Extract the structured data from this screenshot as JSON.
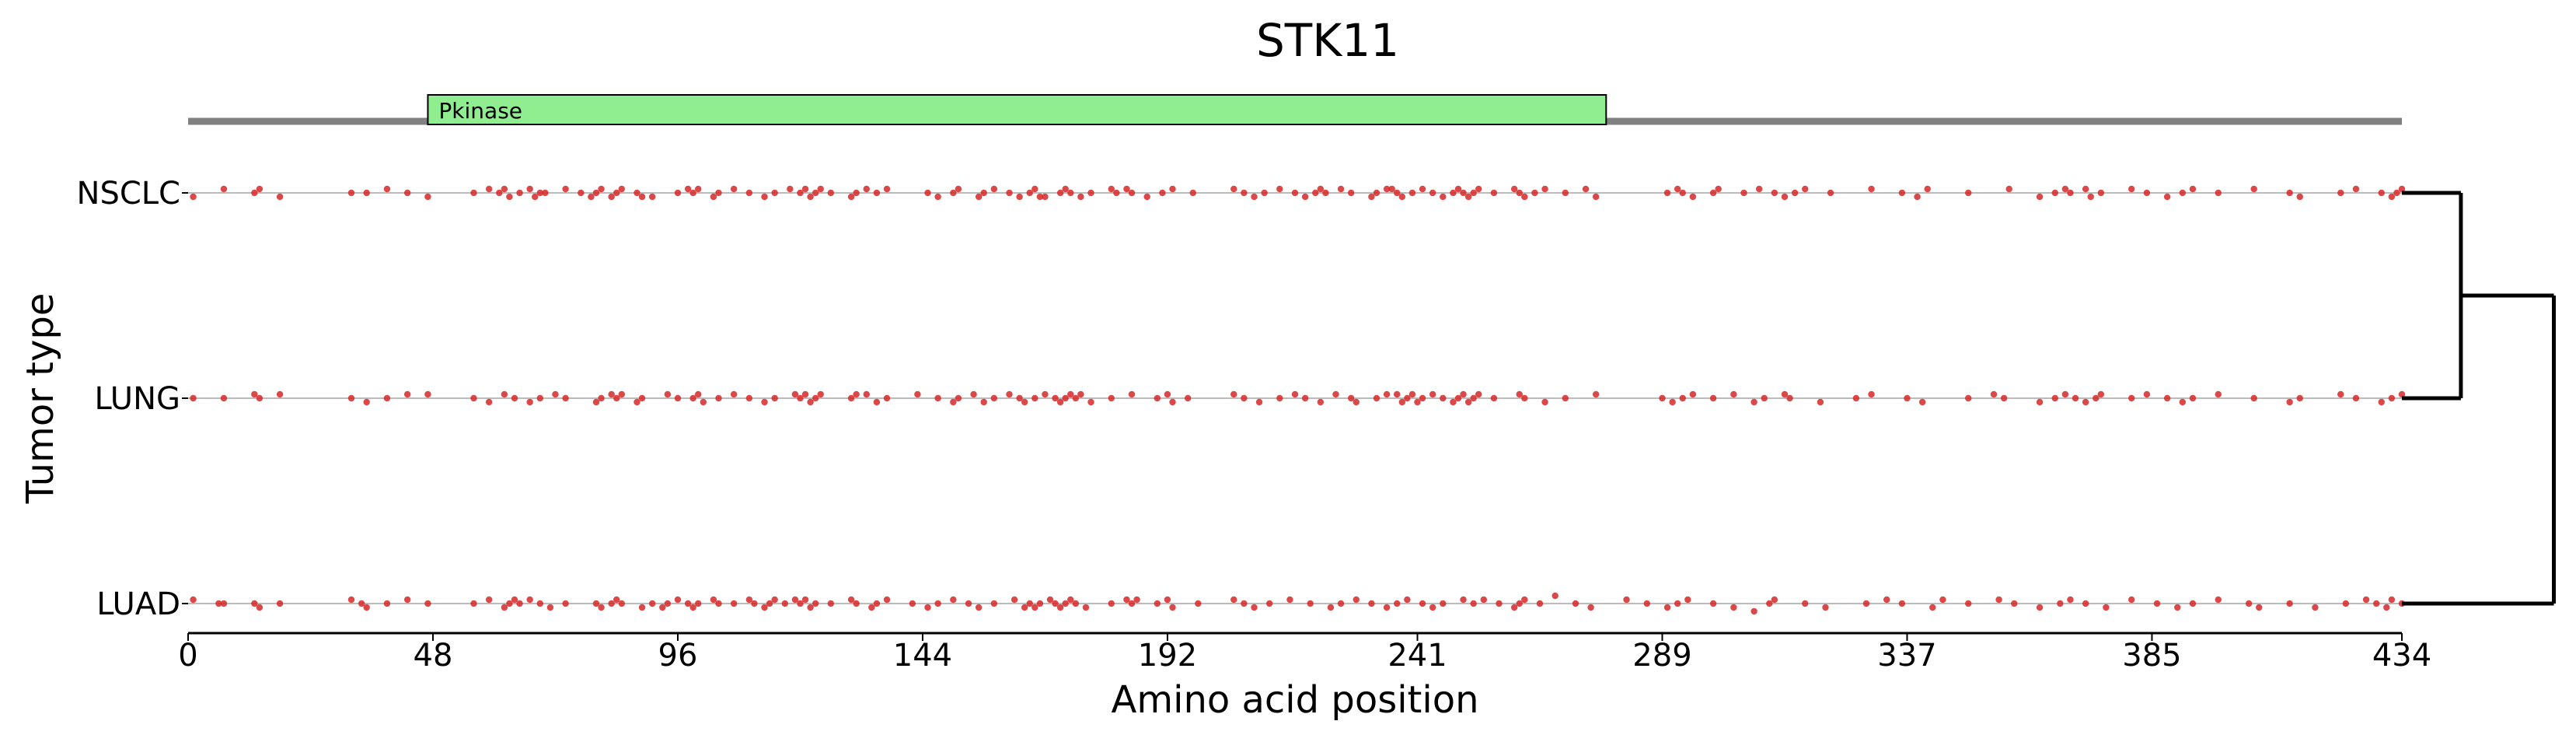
{
  "chart_data": {
    "type": "scatter",
    "title": "STK11",
    "xlabel": "Amino acid position",
    "ylabel": "Tumor type",
    "xlim": [
      0,
      434
    ],
    "x_ticks": [
      "0",
      "48",
      "96",
      "144",
      "192",
      "241",
      "289",
      "337",
      "385",
      "434"
    ],
    "x_tick_values": [
      0,
      48,
      96,
      144,
      192,
      241,
      289,
      337,
      385,
      434
    ],
    "categories": [
      "NSCLC",
      "LUNG",
      "LUAD"
    ],
    "protein_domains": [
      {
        "name": "Pkinase",
        "start": 47,
        "end": 278,
        "color": "#90ee90"
      }
    ],
    "point_color": "#d62728",
    "dendrogram": {
      "leaves": [
        "NSCLC",
        "LUNG",
        "LUAD"
      ],
      "merges": [
        {
          "members": [
            "NSCLC",
            "LUNG"
          ],
          "height": 0.33
        },
        {
          "members": [
            "NSCLC+LUNG",
            "LUAD"
          ],
          "height": 0.85
        }
      ]
    },
    "series": [
      {
        "name": "NSCLC",
        "x": [
          1,
          7,
          13,
          14,
          18,
          32,
          35,
          39,
          43,
          47,
          56,
          59,
          61,
          62,
          63,
          65,
          67,
          69,
          68,
          70,
          74,
          77,
          79,
          80,
          81,
          83,
          84,
          85,
          88,
          89,
          91,
          96,
          98,
          99,
          100,
          103,
          104,
          107,
          110,
          113,
          115,
          118,
          120,
          121,
          122,
          123,
          124,
          126,
          130,
          131,
          133,
          135,
          137,
          145,
          147,
          150,
          151,
          155,
          156,
          158,
          161,
          163,
          165,
          166,
          167,
          168,
          171,
          172,
          173,
          175,
          177,
          181,
          182,
          184,
          185,
          188,
          191,
          193,
          197,
          205,
          207,
          209,
          211,
          214,
          217,
          219,
          221,
          222,
          223,
          226,
          228,
          232,
          233,
          235,
          236,
          237,
          238,
          240,
          242,
          244,
          246,
          248,
          249,
          250,
          251,
          252,
          253,
          256,
          260,
          261,
          262,
          264,
          266,
          270,
          274,
          276,
          290,
          292,
          293,
          295,
          299,
          300,
          305,
          308,
          311,
          313,
          315,
          317,
          322,
          330,
          336,
          339,
          341,
          349,
          357,
          363,
          366,
          368,
          369,
          372,
          373,
          375,
          381,
          384,
          388,
          391,
          393,
          398,
          405,
          412,
          414,
          422,
          425,
          430,
          432,
          433,
          434
        ],
        "y": [
          -1,
          1,
          0,
          1,
          -1,
          0,
          0,
          1,
          0,
          -1,
          0,
          1,
          0,
          1,
          -1,
          0,
          1,
          0,
          -1,
          0,
          1,
          0,
          -1,
          0,
          1,
          -1,
          0,
          1,
          0,
          -1,
          -1,
          0,
          1,
          0,
          1,
          -1,
          0,
          1,
          0,
          -1,
          0,
          1,
          0,
          1,
          -1,
          0,
          1,
          0,
          -1,
          0,
          1,
          0,
          1,
          0,
          -1,
          0,
          1,
          -1,
          0,
          1,
          0,
          -1,
          0,
          1,
          -1,
          -1,
          0,
          1,
          0,
          -1,
          0,
          1,
          0,
          1,
          0,
          -1,
          0,
          1,
          0,
          1,
          0,
          -1,
          0,
          1,
          0,
          -1,
          0,
          1,
          0,
          1,
          0,
          -1,
          0,
          1,
          1,
          0,
          -1,
          0,
          1,
          0,
          -1,
          0,
          1,
          0,
          -1,
          0,
          1,
          0,
          1,
          0,
          -1,
          0,
          1,
          0,
          1,
          -1,
          0,
          1,
          0,
          -1,
          0,
          1,
          0,
          1,
          0,
          -1,
          0,
          1,
          0,
          1,
          0,
          -1,
          1,
          0,
          1,
          -1,
          0,
          1,
          0,
          1,
          -1,
          0,
          1,
          0,
          -1,
          0,
          1,
          0,
          1,
          0,
          -1,
          0,
          1,
          0,
          -1,
          0,
          1
        ]
      },
      {
        "name": "LUNG",
        "x": [
          1,
          7,
          13,
          14,
          18,
          32,
          35,
          39,
          43,
          47,
          56,
          59,
          62,
          64,
          67,
          69,
          72,
          74,
          80,
          81,
          83,
          84,
          85,
          88,
          89,
          94,
          96,
          99,
          100,
          101,
          104,
          107,
          110,
          113,
          115,
          119,
          120,
          121,
          122,
          123,
          124,
          130,
          131,
          133,
          135,
          137,
          143,
          147,
          150,
          151,
          154,
          156,
          158,
          161,
          163,
          164,
          166,
          168,
          170,
          171,
          172,
          173,
          174,
          175,
          177,
          181,
          185,
          190,
          192,
          193,
          196,
          205,
          207,
          210,
          214,
          217,
          219,
          222,
          225,
          228,
          229,
          233,
          235,
          237,
          238,
          239,
          240,
          241,
          242,
          244,
          246,
          248,
          249,
          250,
          251,
          252,
          253,
          256,
          261,
          262,
          266,
          270,
          276,
          289,
          291,
          293,
          295,
          299,
          303,
          307,
          309,
          313,
          314,
          320,
          327,
          330,
          337,
          340,
          349,
          354,
          356,
          363,
          366,
          368,
          370,
          372,
          374,
          375,
          381,
          384,
          388,
          391,
          393,
          398,
          405,
          412,
          414,
          422,
          425,
          430,
          432,
          434
        ],
        "y": [
          0,
          0,
          1,
          0,
          1,
          0,
          -1,
          0,
          1,
          1,
          0,
          -1,
          1,
          0,
          -1,
          0,
          1,
          0,
          -1,
          0,
          1,
          0,
          1,
          -1,
          0,
          1,
          0,
          0,
          1,
          -1,
          0,
          1,
          0,
          -1,
          0,
          1,
          0,
          1,
          -1,
          0,
          1,
          0,
          1,
          1,
          -1,
          0,
          1,
          0,
          -1,
          0,
          1,
          -1,
          0,
          1,
          0,
          -1,
          0,
          1,
          0,
          -1,
          0,
          1,
          0,
          1,
          -1,
          0,
          1,
          0,
          1,
          -1,
          0,
          1,
          0,
          -1,
          0,
          1,
          0,
          -1,
          1,
          0,
          -1,
          0,
          1,
          1,
          -1,
          0,
          1,
          -1,
          0,
          1,
          0,
          -1,
          0,
          1,
          -1,
          0,
          1,
          0,
          1,
          0,
          -1,
          0,
          1,
          0,
          -1,
          0,
          1,
          0,
          1,
          -1,
          0,
          1,
          0,
          -1,
          0,
          1,
          0,
          -1,
          0,
          1,
          0,
          -1,
          0,
          1,
          0,
          -1,
          0,
          1,
          0,
          1,
          0,
          -1,
          0,
          1,
          0,
          -1,
          0,
          1,
          0,
          -1,
          0,
          1
        ]
      },
      {
        "name": "LUAD",
        "x": [
          1,
          6,
          7,
          13,
          14,
          18,
          32,
          34,
          35,
          39,
          43,
          47,
          56,
          59,
          62,
          63,
          64,
          65,
          67,
          69,
          71,
          74,
          80,
          81,
          83,
          84,
          85,
          89,
          91,
          93,
          94,
          96,
          98,
          99,
          100,
          103,
          104,
          107,
          110,
          111,
          113,
          114,
          115,
          117,
          119,
          120,
          121,
          122,
          123,
          126,
          130,
          131,
          134,
          135,
          137,
          142,
          145,
          147,
          150,
          153,
          155,
          158,
          162,
          164,
          165,
          166,
          167,
          169,
          170,
          171,
          172,
          173,
          174,
          176,
          181,
          184,
          185,
          186,
          190,
          192,
          193,
          198,
          205,
          207,
          209,
          212,
          216,
          220,
          224,
          226,
          229,
          232,
          235,
          237,
          239,
          242,
          244,
          246,
          250,
          252,
          254,
          257,
          260,
          261,
          262,
          265,
          268,
          272,
          275,
          282,
          286,
          290,
          292,
          294,
          299,
          303,
          307,
          310,
          311,
          317,
          321,
          329,
          333,
          336,
          342,
          344,
          349,
          355,
          358,
          363,
          367,
          369,
          372,
          376,
          381,
          386,
          390,
          393,
          398,
          404,
          406,
          412,
          417,
          423,
          427,
          429,
          431,
          432,
          434
        ],
        "y": [
          1,
          0,
          0,
          0,
          -1,
          0,
          1,
          0,
          -1,
          0,
          1,
          0,
          0,
          1,
          -1,
          0,
          1,
          0,
          1,
          0,
          -1,
          0,
          0,
          -1,
          0,
          1,
          0,
          -1,
          0,
          -1,
          0,
          1,
          0,
          -1,
          0,
          1,
          0,
          0,
          1,
          0,
          -1,
          0,
          1,
          0,
          1,
          0,
          1,
          -1,
          0,
          0,
          1,
          0,
          -1,
          0,
          1,
          0,
          -1,
          0,
          1,
          0,
          -1,
          0,
          1,
          -1,
          0,
          -1,
          0,
          1,
          0,
          -1,
          0,
          1,
          0,
          -1,
          0,
          1,
          0,
          1,
          0,
          1,
          -1,
          0,
          1,
          0,
          -1,
          0,
          1,
          0,
          -1,
          0,
          1,
          0,
          -1,
          0,
          1,
          0,
          -1,
          0,
          1,
          0,
          1,
          0,
          -1,
          0,
          1,
          0,
          2,
          0,
          -1,
          1,
          0,
          -1,
          0,
          1,
          0,
          -1,
          -2,
          0,
          1,
          0,
          -1,
          0,
          1,
          0,
          -1,
          1,
          0,
          1,
          0,
          -1,
          0,
          1,
          0,
          -1,
          1,
          0,
          -1,
          0,
          1,
          0,
          -1,
          0,
          -1,
          0,
          1,
          0,
          -1,
          1,
          0
        ]
      }
    ]
  }
}
